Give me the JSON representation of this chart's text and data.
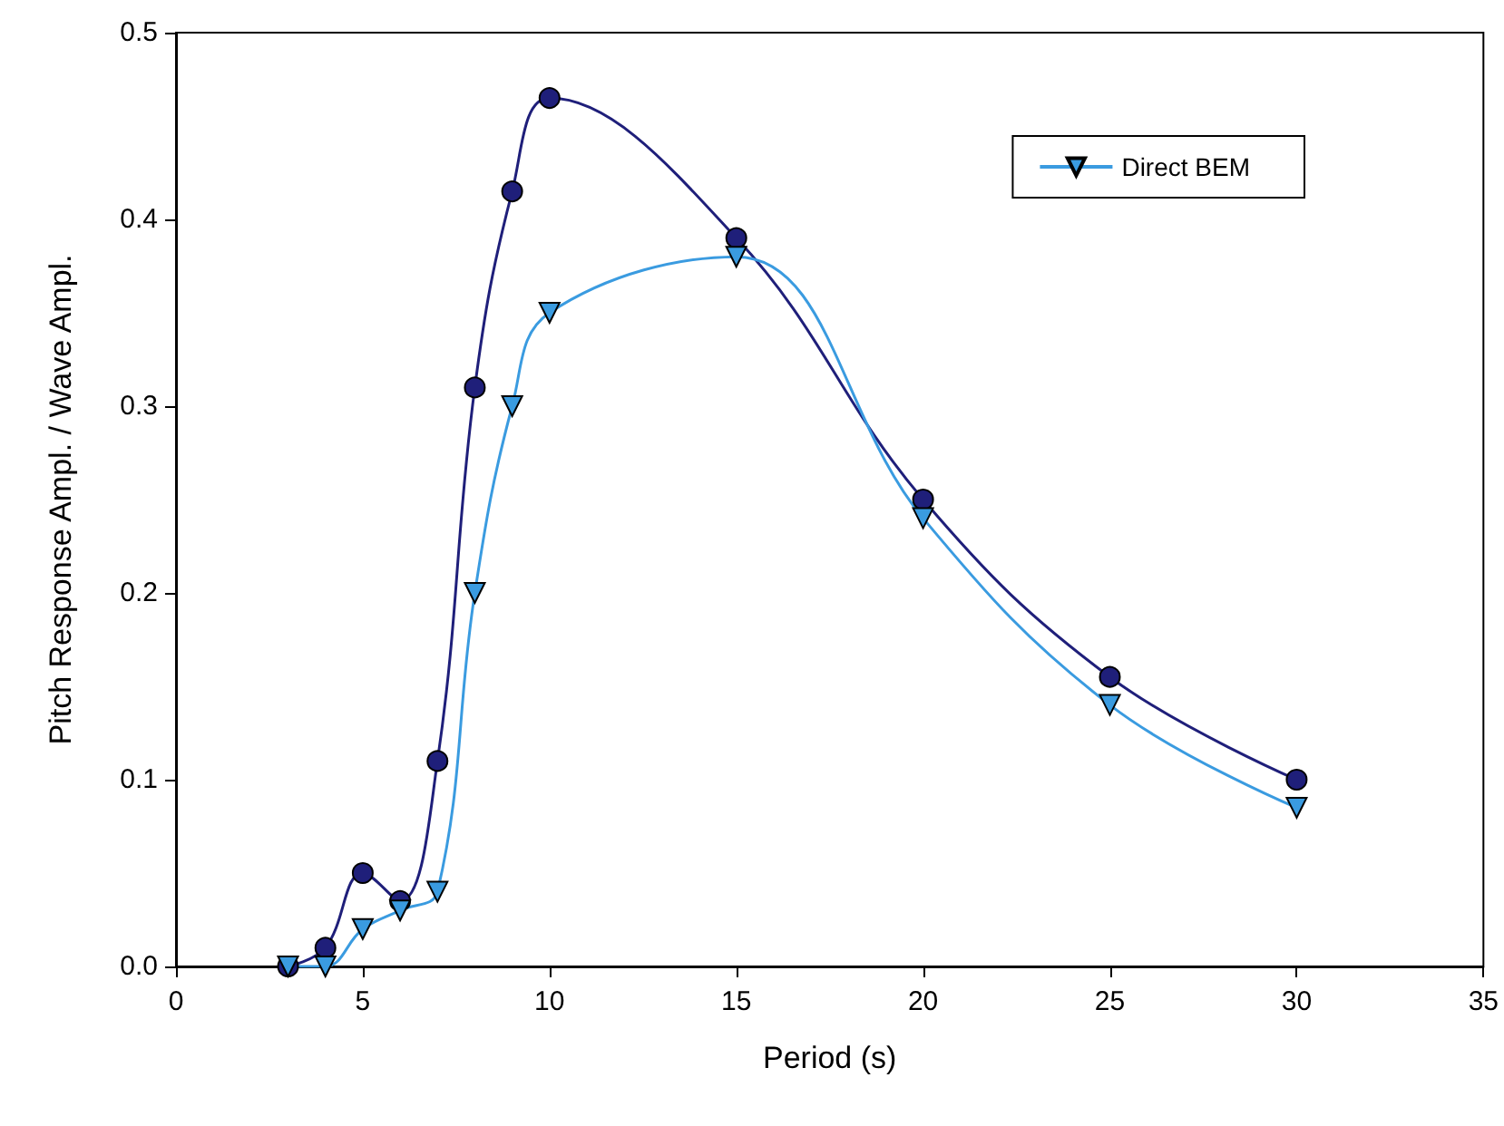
{
  "chart_data": {
    "type": "line",
    "xlabel": "Period (s)",
    "ylabel": "Pitch Response Ampl. / Wave Ampl.",
    "x": [
      3,
      4,
      5,
      6,
      7,
      8,
      9,
      10,
      15,
      20,
      25,
      30
    ],
    "series": [
      {
        "color": "#1f1f7a",
        "marker": "circle",
        "values": [
          0,
          0.01,
          0.05,
          0.035,
          0.11,
          0.31,
          0.415,
          0.465,
          0.39,
          0.25,
          0.155,
          0.1
        ]
      },
      {
        "name": "Direct BEM",
        "color": "#3a9be0",
        "marker": "triangle",
        "values": [
          0,
          0,
          0.02,
          0.03,
          0.04,
          0.2,
          0.3,
          0.35,
          0.38,
          0.24,
          0.14,
          0.085
        ]
      }
    ],
    "xlim": [
      0,
      35
    ],
    "xticks": [
      0,
      5,
      10,
      15,
      20,
      25,
      30,
      35
    ],
    "ylim": [
      0,
      0.5
    ],
    "yticks": [
      {
        "value": 0,
        "label": "0.0"
      },
      {
        "value": 0.1,
        "label": "0.1"
      },
      {
        "value": 0.2,
        "label": "0.2"
      },
      {
        "value": 0.3,
        "label": "0.3"
      },
      {
        "value": 0.4,
        "label": "0.4"
      },
      {
        "value": 0.5,
        "label": "0.5"
      }
    ],
    "grid": false,
    "legend": "top right"
  }
}
